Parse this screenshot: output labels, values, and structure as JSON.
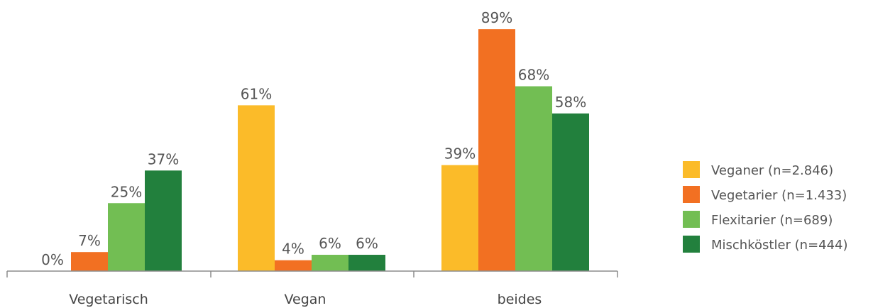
{
  "chart_data": {
    "type": "bar",
    "title": "",
    "xlabel": "",
    "ylabel": "",
    "categories": [
      "Vegetarisch",
      "Vegan",
      "beides"
    ],
    "ylim": [
      0,
      100
    ],
    "grid": false,
    "legend_position": "right",
    "series": [
      {
        "name": "Veganer (n=2.846)",
        "color": "#fbbb29",
        "values": [
          0,
          61,
          39
        ],
        "labels": [
          "0%",
          "61%",
          "39%"
        ]
      },
      {
        "name": "Vegetarier (n=1.433)",
        "color": "#f27022",
        "values": [
          7,
          4,
          89
        ],
        "labels": [
          "7%",
          "4%",
          "89%"
        ]
      },
      {
        "name": "Flexitarier (n=689)",
        "color": "#72be53",
        "values": [
          25,
          6,
          68
        ],
        "labels": [
          "25%",
          "6%",
          "68%"
        ]
      },
      {
        "name": "Mischköstler (n=444)",
        "color": "#22803d",
        "values": [
          37,
          6,
          58
        ],
        "labels": [
          "37%",
          "6%",
          "58%"
        ]
      }
    ]
  }
}
